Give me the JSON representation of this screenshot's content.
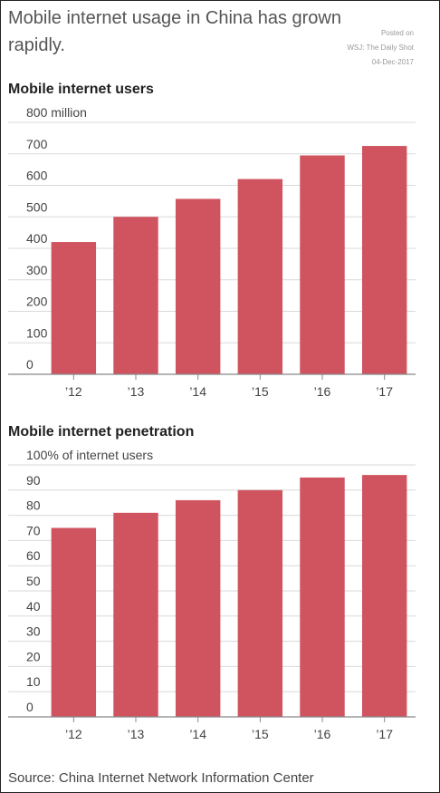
{
  "headline": "Mobile internet usage in China has grown rapidly.",
  "posted": {
    "line1": "Posted on",
    "line2": "WSJ: The Daily Shot",
    "line3": "04-Dec-2017"
  },
  "source": "Source: China Internet Network Information Center",
  "colors": {
    "bar": "#d05460",
    "grid": "#d9d9d9",
    "axis": "#888888",
    "text": "#444444"
  },
  "chart_data": [
    {
      "type": "bar",
      "title": "Mobile internet users",
      "unit_label": "800 million",
      "categories": [
        "’12",
        "’13",
        "’14",
        "’15",
        "’16",
        "’17"
      ],
      "values": [
        420,
        500,
        557,
        620,
        695,
        725
      ],
      "ylim": [
        0,
        800
      ],
      "yticks": [
        0,
        100,
        200,
        300,
        400,
        500,
        600,
        700
      ],
      "grid": true
    },
    {
      "type": "bar",
      "title": "Mobile internet penetration",
      "unit_label": "100% of internet users",
      "categories": [
        "’12",
        "’13",
        "’14",
        "’15",
        "’16",
        "’17"
      ],
      "values": [
        75,
        81,
        86,
        90,
        95,
        96
      ],
      "ylim": [
        0,
        100
      ],
      "yticks": [
        0,
        10,
        20,
        30,
        40,
        50,
        60,
        70,
        80,
        90
      ],
      "grid": true
    }
  ]
}
